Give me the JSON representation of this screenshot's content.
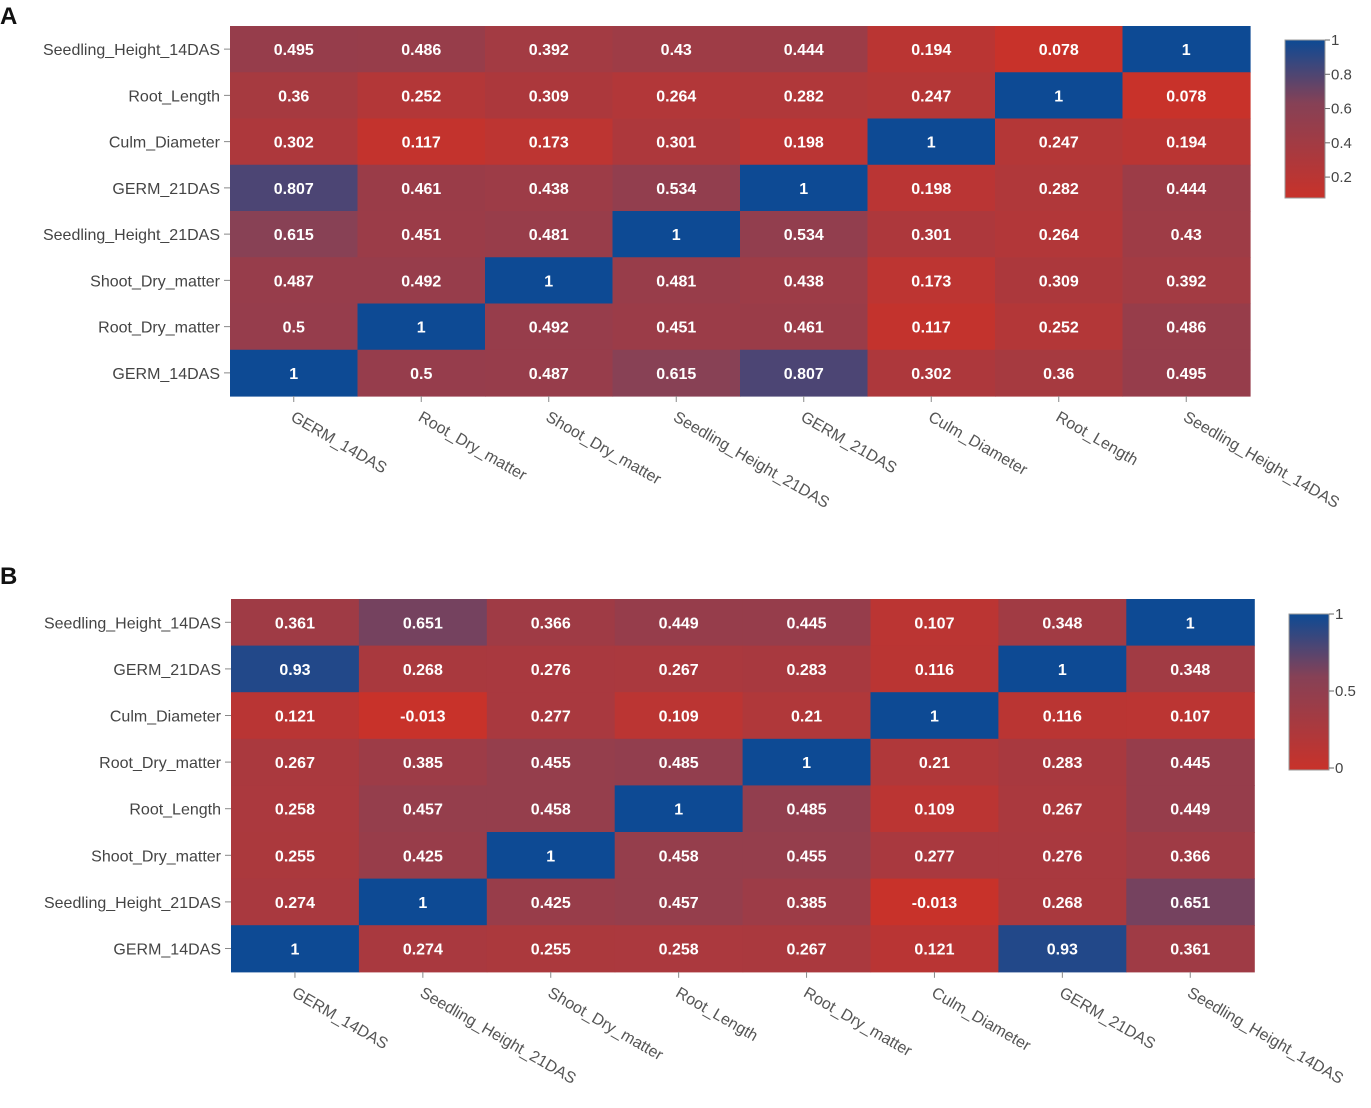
{
  "colors": {
    "low": "#c8322a",
    "mid": "#864156",
    "high": "#0d4a94",
    "axis": "#888888"
  },
  "chart_data": [
    {
      "type": "heatmap",
      "panel": "A",
      "row_labels": [
        "Seedling_Height_14DAS",
        "Root_Length",
        "Culm_Diameter",
        "GERM_21DAS",
        "Seedling_Height_21DAS",
        "Shoot_Dry_matter",
        "Root_Dry_matter",
        "GERM_14DAS"
      ],
      "col_labels": [
        "GERM_14DAS",
        "Root_Dry_matter",
        "Shoot_Dry_matter",
        "Seedling_Height_21DAS",
        "GERM_21DAS",
        "Culm_Diameter",
        "Root_Length",
        "Seedling_Height_14DAS"
      ],
      "values": [
        [
          "0.495",
          "0.486",
          "0.392",
          "0.43",
          "0.444",
          "0.194",
          "0.078",
          "1"
        ],
        [
          "0.36",
          "0.252",
          "0.309",
          "0.264",
          "0.282",
          "0.247",
          "1",
          "0.078"
        ],
        [
          "0.302",
          "0.117",
          "0.173",
          "0.301",
          "0.198",
          "1",
          "0.247",
          "0.194"
        ],
        [
          "0.807",
          "0.461",
          "0.438",
          "0.534",
          "1",
          "0.198",
          "0.282",
          "0.444"
        ],
        [
          "0.615",
          "0.451",
          "0.481",
          "1",
          "0.534",
          "0.301",
          "0.264",
          "0.43"
        ],
        [
          "0.487",
          "0.492",
          "1",
          "0.481",
          "0.438",
          "0.173",
          "0.309",
          "0.392"
        ],
        [
          "0.5",
          "1",
          "0.492",
          "0.451",
          "0.461",
          "0.117",
          "0.252",
          "0.486"
        ],
        [
          "1",
          "0.5",
          "0.487",
          "0.615",
          "0.807",
          "0.302",
          "0.36",
          "0.495"
        ]
      ],
      "zmin": 0.078,
      "zmax": 1,
      "colorbar_ticks": [
        {
          "value": 1,
          "label": "1"
        },
        {
          "value": 0.8,
          "label": "0.8"
        },
        {
          "value": 0.6,
          "label": "0.6"
        },
        {
          "value": 0.4,
          "label": "0.4"
        },
        {
          "value": 0.2,
          "label": "0.2"
        }
      ]
    },
    {
      "type": "heatmap",
      "panel": "B",
      "row_labels": [
        "Seedling_Height_14DAS",
        "GERM_21DAS",
        "Culm_Diameter",
        "Root_Dry_matter",
        "Root_Length",
        "Shoot_Dry_matter",
        "Seedling_Height_21DAS",
        "GERM_14DAS"
      ],
      "col_labels": [
        "GERM_14DAS",
        "Seedling_Height_21DAS",
        "Shoot_Dry_matter",
        "Root_Length",
        "Root_Dry_matter",
        "Culm_Diameter",
        "GERM_21DAS",
        "Seedling_Height_14DAS"
      ],
      "values": [
        [
          "0.361",
          "0.651",
          "0.366",
          "0.449",
          "0.445",
          "0.107",
          "0.348",
          "1"
        ],
        [
          "0.93",
          "0.268",
          "0.276",
          "0.267",
          "0.283",
          "0.116",
          "1",
          "0.348"
        ],
        [
          "0.121",
          "-0.013",
          "0.277",
          "0.109",
          "0.21",
          "1",
          "0.116",
          "0.107"
        ],
        [
          "0.267",
          "0.385",
          "0.455",
          "0.485",
          "1",
          "0.21",
          "0.283",
          "0.445"
        ],
        [
          "0.258",
          "0.457",
          "0.458",
          "1",
          "0.485",
          "0.109",
          "0.267",
          "0.449"
        ],
        [
          "0.255",
          "0.425",
          "1",
          "0.458",
          "0.455",
          "0.277",
          "0.276",
          "0.366"
        ],
        [
          "0.274",
          "1",
          "0.425",
          "0.457",
          "0.385",
          "-0.013",
          "0.268",
          "0.651"
        ],
        [
          "1",
          "0.274",
          "0.255",
          "0.258",
          "0.267",
          "0.121",
          "0.93",
          "0.361"
        ]
      ],
      "zmin": -0.013,
      "zmax": 1,
      "colorbar_ticks": [
        {
          "value": 1,
          "label": "1"
        },
        {
          "value": 0.5,
          "label": "0.5"
        },
        {
          "value": 0,
          "label": "0"
        }
      ]
    }
  ]
}
